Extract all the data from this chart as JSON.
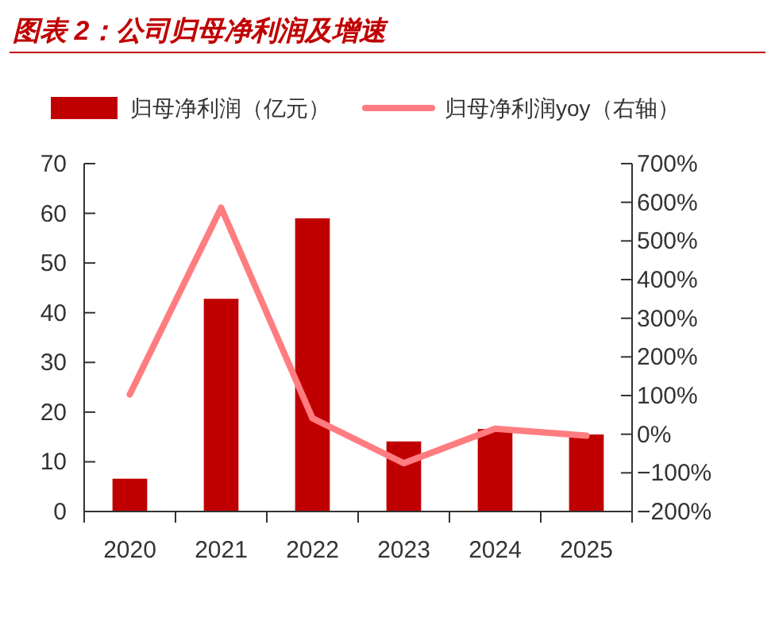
{
  "chart_data": {
    "type": "bar",
    "title": "图表 2：公司归母净利润及增速",
    "categories": [
      "2020",
      "2021",
      "2022",
      "2023",
      "2024",
      "2025"
    ],
    "series": [
      {
        "name": "归母净利润（亿元）",
        "color": "#c00000",
        "values": [
          6.6,
          42.8,
          59.0,
          14.1,
          16.6,
          15.5
        ]
      },
      {
        "name": "归母净利润yoy（右轴）",
        "type": "line",
        "axis": "y2",
        "color": "#ff7c80",
        "values": [
          103,
          586,
          41,
          -75,
          14,
          -4
        ]
      }
    ],
    "ylim": [
      0,
      70
    ],
    "yticks": [
      0,
      10,
      20,
      30,
      40,
      50,
      60,
      70
    ],
    "y2lim": [
      -200,
      700
    ],
    "y2ticks": [
      {
        "value": 700,
        "label": "700%"
      },
      {
        "value": 600,
        "label": "600%"
      },
      {
        "value": 500,
        "label": "500%"
      },
      {
        "value": 400,
        "label": "400%"
      },
      {
        "value": 300,
        "label": "300%"
      },
      {
        "value": 200,
        "label": "200%"
      },
      {
        "value": 100,
        "label": "100%"
      },
      {
        "value": 0,
        "label": "0%"
      },
      {
        "value": -100,
        "label": "−100%"
      },
      {
        "value": -200,
        "label": "−200%"
      }
    ],
    "legend": "top",
    "grid": false,
    "marker": "none",
    "line_style": "solid"
  }
}
